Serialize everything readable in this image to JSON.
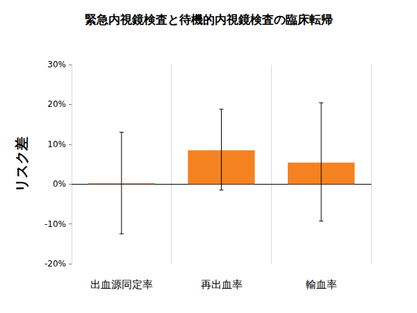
{
  "chart_data": {
    "type": "bar",
    "title": "緊急内視鏡検査と待機的内視鏡検査の臨床転帰",
    "y_label": "リスク差",
    "categories": [
      "出血源同定率",
      "再出血率",
      "輸血率"
    ],
    "values": [
      0.2,
      8.5,
      5.4
    ],
    "error_low": [
      -12.5,
      -1.5,
      -9.3
    ],
    "error_high": [
      13,
      18.8,
      20.4
    ],
    "color": "#f58220",
    "ylim": [
      -20,
      30
    ],
    "yticks": [
      {
        "value": -20,
        "label": "-20%"
      },
      {
        "value": -10,
        "label": "-10%"
      },
      {
        "value": 0,
        "label": "0%"
      },
      {
        "value": 10,
        "label": "10%"
      },
      {
        "value": 20,
        "label": "20%"
      },
      {
        "value": 30,
        "label": "30%"
      }
    ],
    "grid": true
  }
}
